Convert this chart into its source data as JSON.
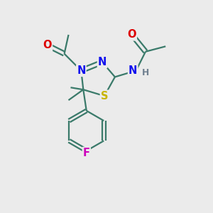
{
  "bg_color": "#ebebeb",
  "bond_color": "#3a7a6a",
  "atom_colors": {
    "N": "#1010ee",
    "O": "#dd0000",
    "S": "#c8b400",
    "F": "#cc00bb",
    "H": "#708090",
    "C": "#3a7a6a"
  },
  "fig_size": [
    3.0,
    3.0
  ],
  "dpi": 100,
  "lw": 1.6,
  "fs": 10.5
}
